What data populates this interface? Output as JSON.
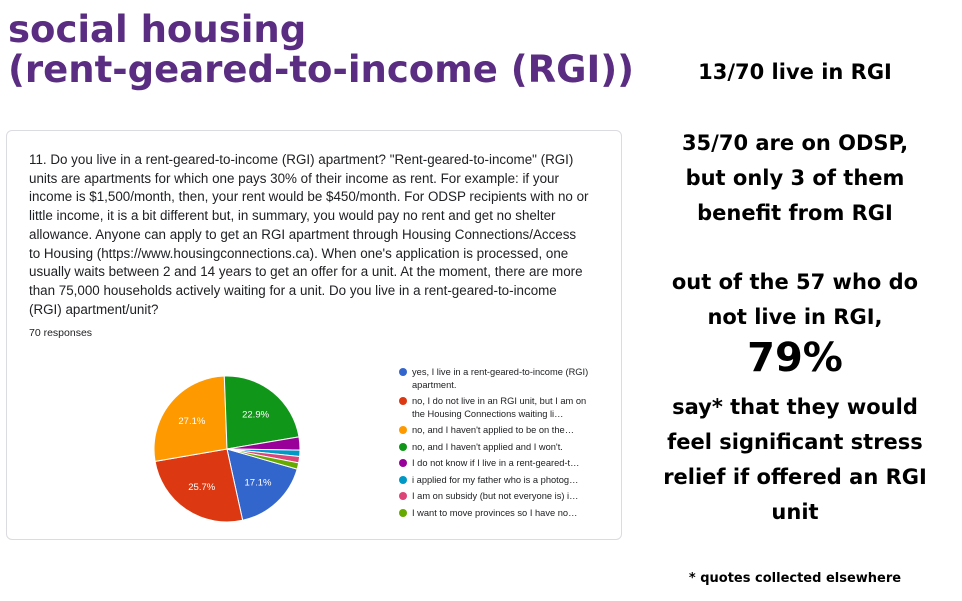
{
  "slide": {
    "title_line1": "social housing",
    "title_line2": "(rent-geared-to-income (RGI))",
    "title_color": "#5a2d82"
  },
  "form": {
    "question": "11. Do you live in a rent-geared-to-income (RGI) apartment? \"Rent-geared-to-income\" (RGI) units are apartments for which one pays 30% of their income as rent. For example: if your income is $1,500/month, then, your rent would be $450/month. For ODSP recipients with no or little income, it is a bit different but, in summary, you would pay no rent and get no shelter allowance. Anyone can apply to get an RGI apartment through Housing Connections/Access to Housing (https://www.housingconnections.ca). When one's application is processed, one usually waits between 2 and 14 years to get an offer for a unit. At the moment, there are more than 75,000 households actively waiting for a unit. Do you live in a rent-geared-to-income (RGI) apartment/unit?",
    "responses": "70 responses"
  },
  "chart_data": {
    "type": "pie",
    "title": "",
    "legend_position": "right",
    "slices": [
      {
        "label": "yes, I live in a rent-geared-to-income (RGI) apartment.",
        "value": 17.1,
        "pct_label": "17.1%",
        "color": "#3366cc"
      },
      {
        "label": "no, I do not live in an RGI unit, but I am on the Housing Connections waiting li…",
        "value": 25.7,
        "pct_label": "25.7%",
        "color": "#dc3912"
      },
      {
        "label": "no, and I haven't applied to be on the…",
        "value": 27.1,
        "pct_label": "27.1%",
        "color": "#ff9900"
      },
      {
        "label": "no, and I haven't applied and I won't.",
        "value": 22.9,
        "pct_label": "22.9%",
        "color": "#109618"
      },
      {
        "label": "I do not know if I live in a rent-geared-t…",
        "value": 2.9,
        "pct_label": "",
        "color": "#990099"
      },
      {
        "label": "i applied for my father who is a photog…",
        "value": 1.4,
        "pct_label": "",
        "color": "#0099c6"
      },
      {
        "label": "I am on subsidy (but not everyone is) i…",
        "value": 1.4,
        "pct_label": "",
        "color": "#dd4477"
      },
      {
        "label": "I want to move provinces so I have no…",
        "value": 1.4,
        "pct_label": "",
        "color": "#66aa00"
      }
    ]
  },
  "summary": {
    "line1": "13/70 live in RGI",
    "line2": "35/70 are on ODSP,\nbut only 3 of them\nbenefit from RGI",
    "line3": "out of the 57 who do\nnot live in RGI,",
    "big_pct": "79%",
    "line4": "say* that they would\nfeel significant stress\nrelief if offered an RGI\nunit",
    "footnote": "* quotes collected elsewhere"
  }
}
